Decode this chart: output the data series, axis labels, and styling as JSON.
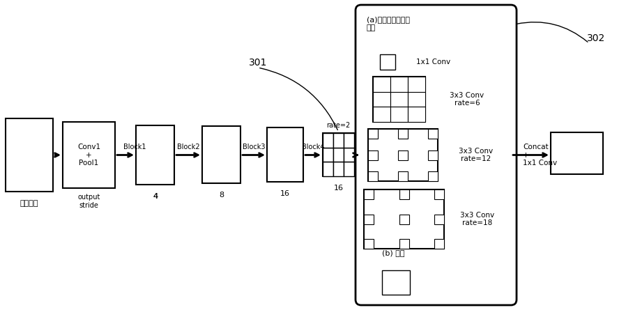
{
  "bg_color": "#ffffff",
  "fig_width": 8.98,
  "fig_height": 4.45,
  "dpi": 100,
  "label_input": "输入图片",
  "label_conv1": "Conv1\n+\nPool1",
  "label_output_stride": "output\nstride",
  "label_4": "4",
  "label_block1": "Block1",
  "label_8": "8",
  "label_block2": "Block2",
  "label_16a": "16",
  "label_block3": "Block3",
  "label_rate2": "rate=2",
  "label_block4": "Block4",
  "label_16b": "16",
  "label_301": "301",
  "label_302": "302",
  "label_aspp_title": "(a)空洞空间金字塔\n池化",
  "label_1x1conv": "1x1 Conv",
  "label_3x3conv_6": "3x3 Conv\nrate=6",
  "label_3x3conv_12": "3x3 Conv\nrate=12",
  "label_3x3conv_18": "3x3 Conv\nrate=18",
  "label_b_pooling": "(b) 池化",
  "label_concat": "Concat\n+\n1x1 Conv"
}
